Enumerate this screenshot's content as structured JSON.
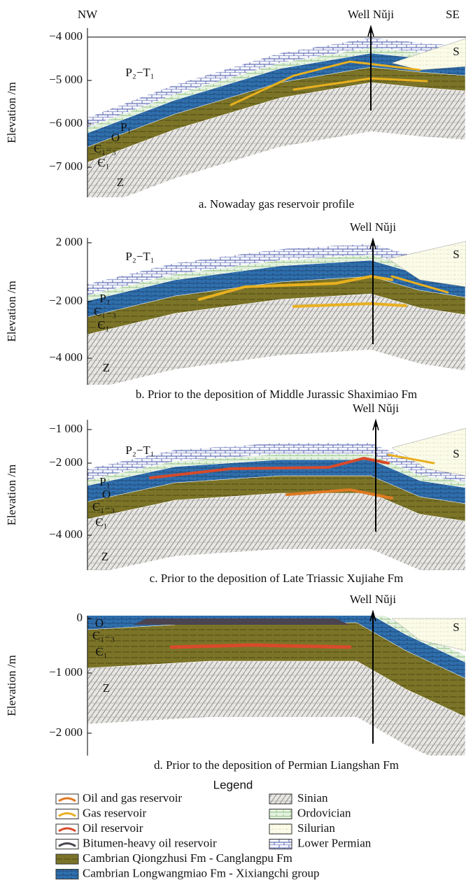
{
  "panels": [
    {
      "left_label": "NW",
      "well_label": "Well Nǔji",
      "right_label": "SE",
      "y_axis_label": "Elevation /m",
      "y_ticks": [
        "−4 000",
        "−5 000",
        "−6 000",
        "−7 000"
      ],
      "formations": [
        "P₂−T₁",
        "P₁",
        "O",
        "Є₁₋₃",
        "Є₁",
        "Z",
        "S"
      ],
      "caption": "a. Nowaday gas reservoir profile"
    },
    {
      "well_label": "Well Nǔji",
      "y_axis_label": "Elevation /m",
      "y_ticks": [
        "2 000",
        "−2 000",
        "−4 000"
      ],
      "formations": [
        "P₂−T₁",
        "P₁",
        "Є₁₋₃",
        "Є₁",
        "Z",
        "S"
      ],
      "caption": "b. Prior to the deposition of Middle Jurassic Shaximiao Fm"
    },
    {
      "well_label": "Well Nǔji",
      "y_axis_label": "Elevation /m",
      "y_ticks": [
        "−1 000",
        "−2 000",
        "−4 000"
      ],
      "formations": [
        "P₂−T₁",
        "P₁",
        "O",
        "Є₁₋₃",
        "Є₁",
        "Z",
        "S"
      ],
      "caption": "c. Prior to the deposition of Late Triassic Xujiahe Fm"
    },
    {
      "well_label": "Well Nǔji",
      "y_axis_label": "Elevation /m",
      "y_ticks": [
        "0",
        "−1 000",
        "−2 000"
      ],
      "formations": [
        "O",
        "Є₁₋₃",
        "Є₁",
        "Z",
        "S"
      ],
      "caption": "d. Prior to the deposition of Permian Liangshan Fm"
    }
  ],
  "legend": {
    "title": "Legend",
    "left": [
      "Oil and gas reservoir",
      "Gas reservoir",
      "Oil reservoir",
      "Bitumen-heavy oil reservoir",
      "Cambrian Qiongzhusi Fm - Canglangpu Fm",
      "Cambrian Longwangmiao Fm - Xixiangchi group"
    ],
    "right": [
      "Sinian",
      "Ordovician",
      "Silurian",
      "Lower Permian"
    ]
  }
}
